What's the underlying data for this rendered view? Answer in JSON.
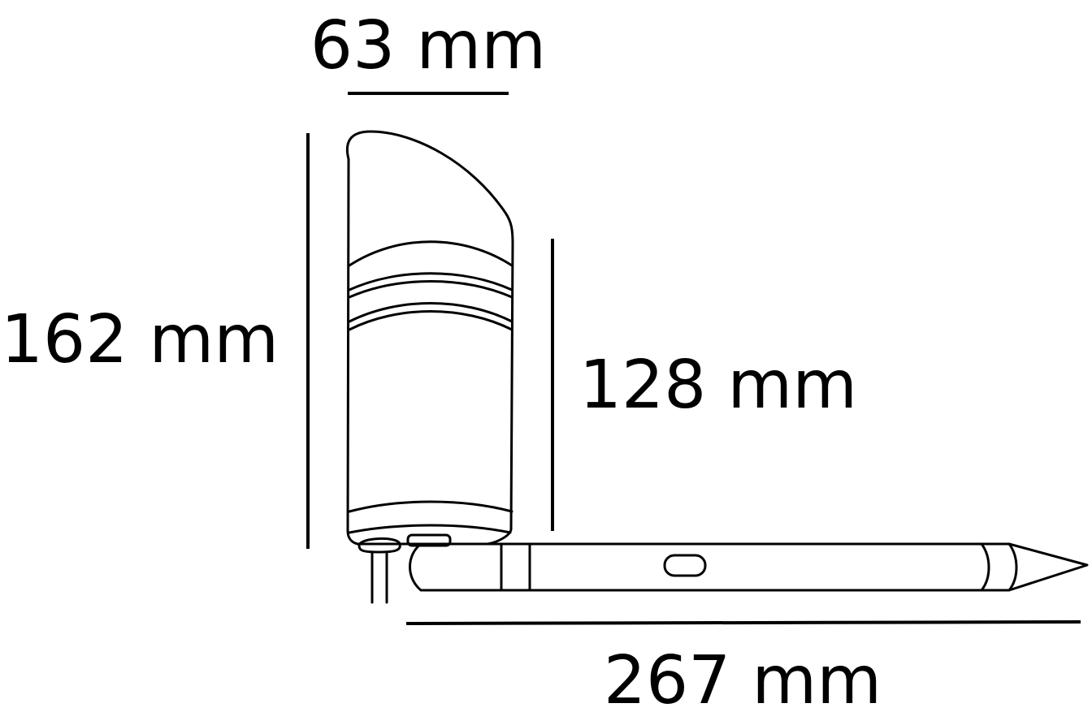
{
  "dimensions": {
    "width_label": "63 mm",
    "total_height_label": "162 mm",
    "body_height_label": "128 mm",
    "length_label": "267 mm"
  },
  "colors": {
    "line": "#000000",
    "background": "#ffffff"
  }
}
